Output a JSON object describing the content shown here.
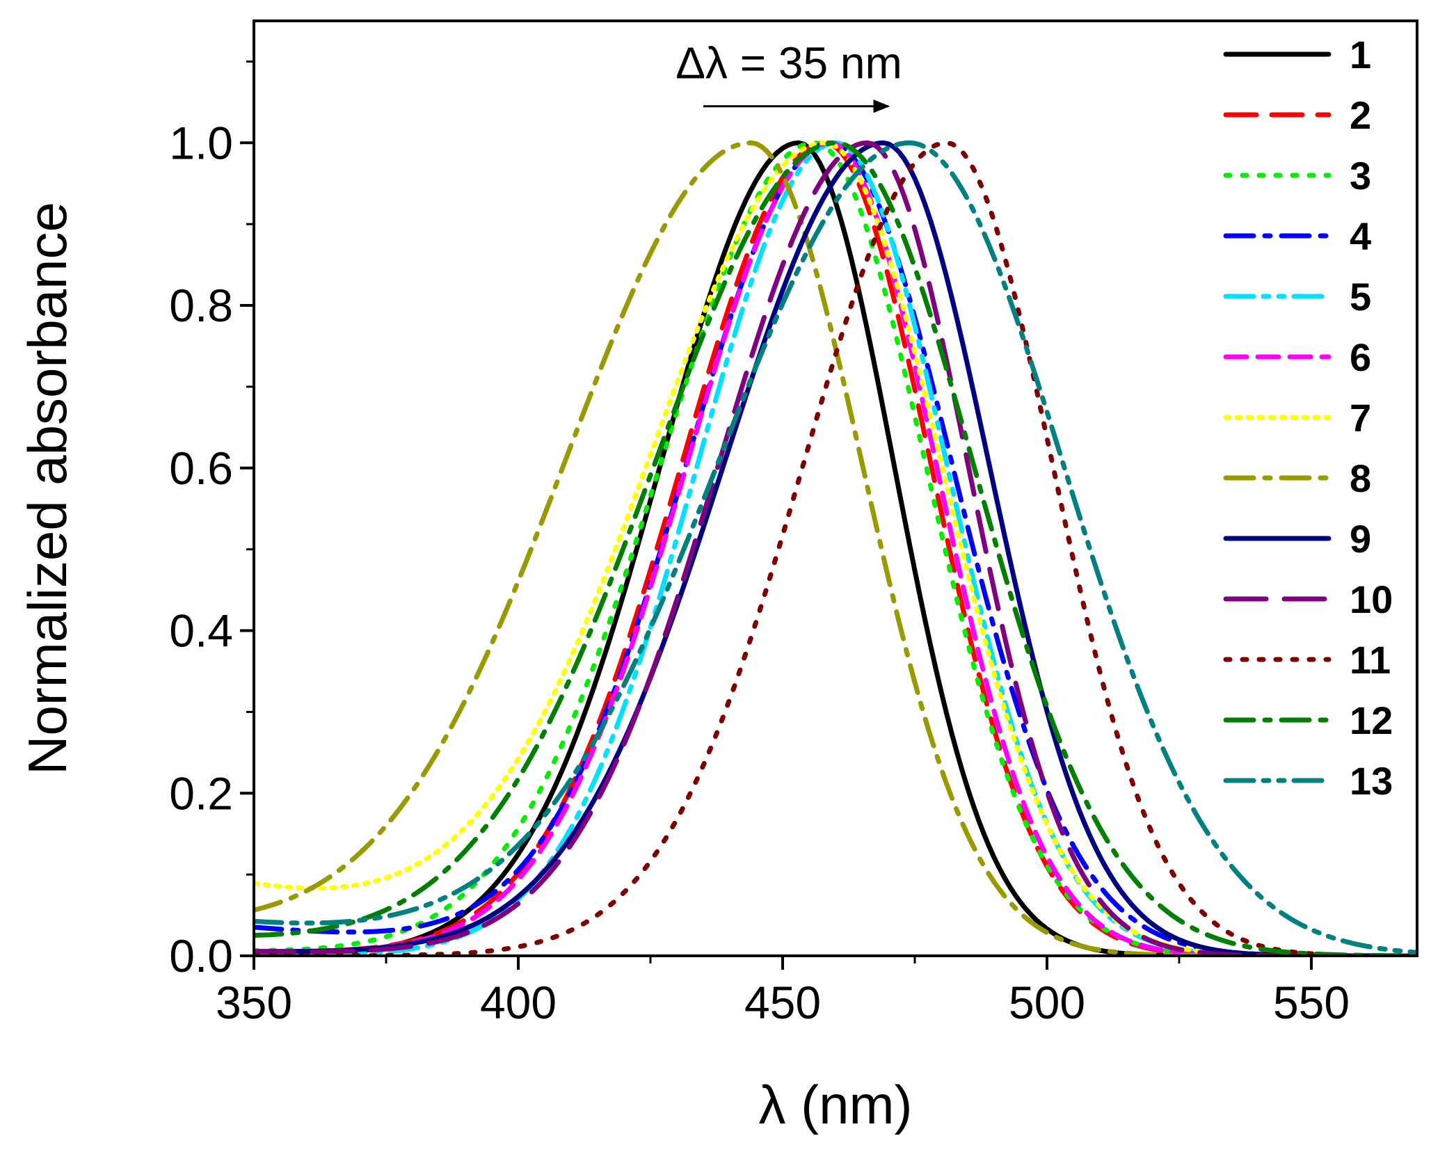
{
  "chart_data": {
    "type": "line",
    "xlabel": "λ (nm)",
    "ylabel": "Normalized absorbance",
    "xlim": [
      350,
      570
    ],
    "ylim": [
      0,
      1.15
    ],
    "xticks": [
      350,
      400,
      450,
      500,
      550
    ],
    "xtick_labels": [
      "350",
      "400",
      "450",
      "500",
      "550"
    ],
    "yticks": [
      0,
      0.2,
      0.4,
      0.6,
      0.8,
      1.0
    ],
    "ytick_labels": [
      "0.0",
      "0.2",
      "0.4",
      "0.6",
      "0.8",
      "1.0"
    ],
    "grid": false,
    "legend_position": "top-right",
    "annotation": {
      "text": "Δλ = 35 nm",
      "arrow_from_x": 435,
      "arrow_to_x": 470,
      "arrow_y": 1.045
    },
    "series": [
      {
        "name": "1",
        "color": "#000000",
        "dash": "solid",
        "peak": 453,
        "width_left": 26,
        "width_right": 18,
        "tail": 0.0
      },
      {
        "name": "2",
        "color": "#ff0000",
        "dash": "dash",
        "peak": 458,
        "width_left": 27,
        "width_right": 20,
        "tail": 0.005
      },
      {
        "name": "3",
        "color": "#00ee00",
        "dash": "dot",
        "peak": 456,
        "width_left": 29,
        "width_right": 21,
        "tail": 0.005
      },
      {
        "name": "4",
        "color": "#0000ff",
        "dash": "dashdot",
        "peak": 459,
        "width_left": 27,
        "width_right": 23,
        "tail": 0.035
      },
      {
        "name": "5",
        "color": "#00e0ff",
        "dash": "dashdotdot",
        "peak": 460,
        "width_left": 26,
        "width_right": 21,
        "tail": 0.0
      },
      {
        "name": "6",
        "color": "#ff00ff",
        "dash": "shortdash",
        "peak": 459,
        "width_left": 27,
        "width_right": 20,
        "tail": 0.005
      },
      {
        "name": "7",
        "color": "#ffff00",
        "dash": "shortdot",
        "peak": 458,
        "width_left": 33,
        "width_right": 22,
        "tail": 0.085
      },
      {
        "name": "8",
        "color": "#999900",
        "dash": "dashdot",
        "peak": 444,
        "width_left": 35,
        "width_right": 21,
        "tail": 0.03
      },
      {
        "name": "9",
        "color": "#000080",
        "dash": "solid",
        "peak": 469,
        "width_left": 30,
        "width_right": 20,
        "tail": 0.005
      },
      {
        "name": "10",
        "color": "#800080",
        "dash": "longdash",
        "peak": 466,
        "width_left": 28,
        "width_right": 19,
        "tail": 0.005
      },
      {
        "name": "11",
        "color": "#800000",
        "dash": "dot",
        "peak": 481,
        "width_left": 27,
        "width_right": 20,
        "tail": 0.0
      },
      {
        "name": "12",
        "color": "#008000",
        "dash": "dashdot",
        "peak": 460,
        "width_left": 34,
        "width_right": 26,
        "tail": 0.02
      },
      {
        "name": "13",
        "color": "#008080",
        "dash": "dashdotdot",
        "peak": 474,
        "width_left": 36,
        "width_right": 29,
        "tail": 0.04
      }
    ]
  }
}
